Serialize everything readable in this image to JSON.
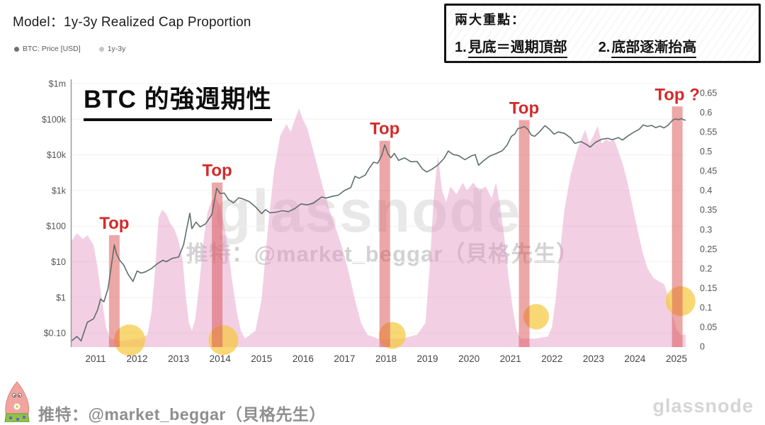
{
  "header": {
    "title": "Model：1y-3y Realized Cap Proportion"
  },
  "legend": {
    "items": [
      {
        "label": "BTC: Price [USD]",
        "dot_color": "#6f6f6f"
      },
      {
        "label": "1y-3y",
        "dot_color": "#c6c6c6"
      }
    ]
  },
  "note_box": {
    "heading": "兩大重點：",
    "points": [
      {
        "num": "1.",
        "text": "見底＝週期頂部"
      },
      {
        "num": "2.",
        "text": "底部逐漸抬高"
      }
    ]
  },
  "headline": {
    "text": "BTC 的強週期性"
  },
  "watermarks": {
    "center_logo": "glassnode",
    "center_twitter": "推特：@market_beggar（貝格先生）",
    "bottom_right_logo": "glassnode"
  },
  "footer": {
    "twitter": "推特：@market_beggar（貝格先生）"
  },
  "chart_data": {
    "type": "area+line",
    "title": "Model：1y-3y Realized Cap Proportion",
    "x_axis": {
      "years": [
        2011,
        2012,
        2013,
        2014,
        2015,
        2016,
        2017,
        2018,
        2019,
        2020,
        2021,
        2022,
        2023,
        2024,
        2025
      ]
    },
    "left_axis": {
      "label": "BTC: Price [USD]",
      "scale": "log",
      "ticks": [
        {
          "label": "$1m",
          "value": 1000000
        },
        {
          "label": "$100k",
          "value": 100000
        },
        {
          "label": "$10k",
          "value": 10000
        },
        {
          "label": "$1k",
          "value": 1000
        },
        {
          "label": "$100",
          "value": 100
        },
        {
          "label": "$10",
          "value": 10
        },
        {
          "label": "$1",
          "value": 1
        },
        {
          "label": "$0.10",
          "value": 0.1
        }
      ]
    },
    "right_axis": {
      "label": "1y-3y Realized Cap Proportion",
      "scale": "linear",
      "range": [
        0,
        0.65
      ],
      "ticks": [
        "0.65",
        "0.6",
        "0.55",
        "0.5",
        "0.45",
        "0.4",
        "0.35",
        "0.3",
        "0.25",
        "0.2",
        "0.15",
        "0.1",
        "0.05",
        "0"
      ]
    },
    "series": [
      {
        "name": "BTC: Price [USD]",
        "type": "line",
        "axis": "left",
        "color": "#5f6e6c",
        "points": [
          [
            2010.42,
            0.06
          ],
          [
            2010.55,
            0.08
          ],
          [
            2010.65,
            0.06
          ],
          [
            2010.8,
            0.2
          ],
          [
            2010.95,
            0.25
          ],
          [
            2011.05,
            0.45
          ],
          [
            2011.12,
            0.9
          ],
          [
            2011.2,
            0.75
          ],
          [
            2011.3,
            1.8
          ],
          [
            2011.38,
            8
          ],
          [
            2011.45,
            30
          ],
          [
            2011.5,
            17
          ],
          [
            2011.58,
            11
          ],
          [
            2011.68,
            8
          ],
          [
            2011.78,
            4.5
          ],
          [
            2011.9,
            2.8
          ],
          [
            2012.0,
            5.5
          ],
          [
            2012.1,
            4.8
          ],
          [
            2012.2,
            5.2
          ],
          [
            2012.35,
            6.5
          ],
          [
            2012.5,
            9
          ],
          [
            2012.62,
            11
          ],
          [
            2012.7,
            10
          ],
          [
            2012.85,
            12.5
          ],
          [
            2013.0,
            13.5
          ],
          [
            2013.12,
            30
          ],
          [
            2013.2,
            90
          ],
          [
            2013.27,
            230
          ],
          [
            2013.32,
            85
          ],
          [
            2013.42,
            130
          ],
          [
            2013.52,
            95
          ],
          [
            2013.65,
            115
          ],
          [
            2013.8,
            210
          ],
          [
            2013.92,
            1150
          ],
          [
            2014.0,
            820
          ],
          [
            2014.1,
            850
          ],
          [
            2014.2,
            560
          ],
          [
            2014.32,
            450
          ],
          [
            2014.45,
            620
          ],
          [
            2014.55,
            580
          ],
          [
            2014.7,
            490
          ],
          [
            2014.85,
            350
          ],
          [
            2015.0,
            225
          ],
          [
            2015.1,
            290
          ],
          [
            2015.2,
            235
          ],
          [
            2015.35,
            245
          ],
          [
            2015.5,
            270
          ],
          [
            2015.65,
            255
          ],
          [
            2015.8,
            310
          ],
          [
            2015.95,
            420
          ],
          [
            2016.1,
            395
          ],
          [
            2016.25,
            440
          ],
          [
            2016.45,
            660
          ],
          [
            2016.55,
            610
          ],
          [
            2016.7,
            680
          ],
          [
            2016.85,
            740
          ],
          [
            2017.0,
            1000
          ],
          [
            2017.15,
            1200
          ],
          [
            2017.25,
            2500
          ],
          [
            2017.35,
            2200
          ],
          [
            2017.5,
            2700
          ],
          [
            2017.6,
            4300
          ],
          [
            2017.7,
            6200
          ],
          [
            2017.8,
            5800
          ],
          [
            2017.9,
            9800
          ],
          [
            2017.97,
            19000
          ],
          [
            2018.05,
            10500
          ],
          [
            2018.12,
            8300
          ],
          [
            2018.2,
            11000
          ],
          [
            2018.3,
            7000
          ],
          [
            2018.45,
            8200
          ],
          [
            2018.6,
            6400
          ],
          [
            2018.75,
            6500
          ],
          [
            2018.88,
            4000
          ],
          [
            2018.98,
            3300
          ],
          [
            2019.1,
            3900
          ],
          [
            2019.25,
            5200
          ],
          [
            2019.4,
            8000
          ],
          [
            2019.5,
            12800
          ],
          [
            2019.62,
            10200
          ],
          [
            2019.75,
            9500
          ],
          [
            2019.9,
            7300
          ],
          [
            2020.05,
            9300
          ],
          [
            2020.15,
            10200
          ],
          [
            2020.23,
            5100
          ],
          [
            2020.35,
            6800
          ],
          [
            2020.5,
            9200
          ],
          [
            2020.65,
            10800
          ],
          [
            2020.8,
            13000
          ],
          [
            2020.92,
            19000
          ],
          [
            2021.02,
            33000
          ],
          [
            2021.1,
            38000
          ],
          [
            2021.18,
            55000
          ],
          [
            2021.28,
            58000
          ],
          [
            2021.33,
            63000
          ],
          [
            2021.42,
            52000
          ],
          [
            2021.5,
            36000
          ],
          [
            2021.58,
            33000
          ],
          [
            2021.7,
            44000
          ],
          [
            2021.83,
            66000
          ],
          [
            2021.95,
            51000
          ],
          [
            2022.05,
            38000
          ],
          [
            2022.15,
            44000
          ],
          [
            2022.3,
            40000
          ],
          [
            2022.45,
            30000
          ],
          [
            2022.55,
            21000
          ],
          [
            2022.7,
            23500
          ],
          [
            2022.82,
            19800
          ],
          [
            2022.92,
            16500
          ],
          [
            2023.05,
            22500
          ],
          [
            2023.2,
            27500
          ],
          [
            2023.35,
            29000
          ],
          [
            2023.45,
            26500
          ],
          [
            2023.6,
            30500
          ],
          [
            2023.7,
            26000
          ],
          [
            2023.85,
            35000
          ],
          [
            2023.97,
            43000
          ],
          [
            2024.1,
            52000
          ],
          [
            2024.2,
            69000
          ],
          [
            2024.3,
            63000
          ],
          [
            2024.4,
            67000
          ],
          [
            2024.5,
            58000
          ],
          [
            2024.6,
            64000
          ],
          [
            2024.7,
            57000
          ],
          [
            2024.8,
            68000
          ],
          [
            2024.9,
            92000
          ],
          [
            2024.97,
            102000
          ],
          [
            2025.05,
            97000
          ],
          [
            2025.12,
            104000
          ],
          [
            2025.18,
            96000
          ],
          [
            2025.22,
            93000
          ]
        ]
      },
      {
        "name": "1y-3y",
        "type": "area",
        "axis": "right",
        "color": "#e494c4",
        "opacity": 0.45,
        "points": [
          [
            2010.42,
            0.27
          ],
          [
            2010.55,
            0.29
          ],
          [
            2010.7,
            0.275
          ],
          [
            2010.8,
            0.285
          ],
          [
            2010.95,
            0.26
          ],
          [
            2011.05,
            0.2
          ],
          [
            2011.15,
            0.12
          ],
          [
            2011.25,
            0.05
          ],
          [
            2011.35,
            0.02
          ],
          [
            2011.6,
            0.013
          ],
          [
            2011.9,
            0.018
          ],
          [
            2012.1,
            0.02
          ],
          [
            2012.25,
            0.03
          ],
          [
            2012.35,
            0.09
          ],
          [
            2012.45,
            0.22
          ],
          [
            2012.52,
            0.33
          ],
          [
            2012.6,
            0.35
          ],
          [
            2012.7,
            0.34
          ],
          [
            2012.8,
            0.315
          ],
          [
            2012.9,
            0.3
          ],
          [
            2013.0,
            0.27
          ],
          [
            2013.1,
            0.22
          ],
          [
            2013.17,
            0.13
          ],
          [
            2013.25,
            0.06
          ],
          [
            2013.32,
            0.04
          ],
          [
            2013.4,
            0.07
          ],
          [
            2013.5,
            0.16
          ],
          [
            2013.6,
            0.27
          ],
          [
            2013.7,
            0.345
          ],
          [
            2013.8,
            0.375
          ],
          [
            2013.9,
            0.38
          ],
          [
            2014.0,
            0.36
          ],
          [
            2014.1,
            0.31
          ],
          [
            2014.2,
            0.245
          ],
          [
            2014.3,
            0.16
          ],
          [
            2014.4,
            0.09
          ],
          [
            2014.5,
            0.04
          ],
          [
            2014.6,
            0.02
          ],
          [
            2014.85,
            0.04
          ],
          [
            2015.0,
            0.12
          ],
          [
            2015.15,
            0.3
          ],
          [
            2015.3,
            0.45
          ],
          [
            2015.45,
            0.54
          ],
          [
            2015.6,
            0.57
          ],
          [
            2015.7,
            0.55
          ],
          [
            2015.8,
            0.58
          ],
          [
            2015.9,
            0.61
          ],
          [
            2016.0,
            0.58
          ],
          [
            2016.1,
            0.56
          ],
          [
            2016.2,
            0.52
          ],
          [
            2016.35,
            0.46
          ],
          [
            2016.5,
            0.4
          ],
          [
            2016.65,
            0.345
          ],
          [
            2016.8,
            0.3
          ],
          [
            2016.95,
            0.25
          ],
          [
            2017.1,
            0.19
          ],
          [
            2017.25,
            0.12
          ],
          [
            2017.4,
            0.06
          ],
          [
            2017.55,
            0.03
          ],
          [
            2017.8,
            0.02
          ],
          [
            2018.1,
            0.02
          ],
          [
            2018.4,
            0.02
          ],
          [
            2018.75,
            0.03
          ],
          [
            2018.95,
            0.06
          ],
          [
            2019.05,
            0.2
          ],
          [
            2019.15,
            0.38
          ],
          [
            2019.25,
            0.49
          ],
          [
            2019.35,
            0.4
          ],
          [
            2019.45,
            0.37
          ],
          [
            2019.55,
            0.41
          ],
          [
            2019.7,
            0.39
          ],
          [
            2019.85,
            0.42
          ],
          [
            2019.95,
            0.4
          ],
          [
            2020.1,
            0.42
          ],
          [
            2020.25,
            0.4
          ],
          [
            2020.4,
            0.41
          ],
          [
            2020.55,
            0.38
          ],
          [
            2020.65,
            0.42
          ],
          [
            2020.75,
            0.36
          ],
          [
            2020.85,
            0.28
          ],
          [
            2020.95,
            0.18
          ],
          [
            2021.05,
            0.1
          ],
          [
            2021.15,
            0.04
          ],
          [
            2021.25,
            0.02
          ],
          [
            2021.6,
            0.02
          ],
          [
            2021.9,
            0.025
          ],
          [
            2022.0,
            0.05
          ],
          [
            2022.1,
            0.13
          ],
          [
            2022.2,
            0.25
          ],
          [
            2022.3,
            0.35
          ],
          [
            2022.45,
            0.44
          ],
          [
            2022.6,
            0.5
          ],
          [
            2022.7,
            0.53
          ],
          [
            2022.8,
            0.555
          ],
          [
            2022.9,
            0.52
          ],
          [
            2023.0,
            0.54
          ],
          [
            2023.1,
            0.565
          ],
          [
            2023.2,
            0.52
          ],
          [
            2023.3,
            0.53
          ],
          [
            2023.4,
            0.525
          ],
          [
            2023.5,
            0.53
          ],
          [
            2023.6,
            0.5
          ],
          [
            2023.7,
            0.47
          ],
          [
            2023.8,
            0.43
          ],
          [
            2023.9,
            0.38
          ],
          [
            2024.0,
            0.33
          ],
          [
            2024.1,
            0.28
          ],
          [
            2024.2,
            0.235
          ],
          [
            2024.3,
            0.2
          ],
          [
            2024.45,
            0.175
          ],
          [
            2024.6,
            0.165
          ],
          [
            2024.7,
            0.16
          ],
          [
            2024.8,
            0.13
          ],
          [
            2024.9,
            0.085
          ],
          [
            2025.0,
            0.045
          ],
          [
            2025.1,
            0.03
          ],
          [
            2025.22,
            0.03
          ]
        ]
      }
    ],
    "markers": [
      {
        "label": "Top",
        "year": 2011.45,
        "bar_top": 0.285
      },
      {
        "label": "Top",
        "year": 2013.93,
        "bar_top": 0.42
      },
      {
        "label": "Top",
        "year": 2017.97,
        "bar_top": 0.527
      },
      {
        "label": "Top",
        "year": 2021.33,
        "bar_top": 0.58
      },
      {
        "label": "Top ?",
        "year": 2025.02,
        "bar_top": 0.615
      }
    ],
    "bottom_circles": [
      {
        "year": 2011.82,
        "value": 0.016,
        "r": 22
      },
      {
        "year": 2014.08,
        "value": 0.016,
        "r": 21
      },
      {
        "year": 2018.15,
        "value": 0.028,
        "r": 19
      },
      {
        "year": 2021.62,
        "value": 0.076,
        "r": 18
      },
      {
        "year": 2025.1,
        "value": 0.116,
        "r": 21
      }
    ],
    "colors": {
      "top_bar": "#d94f4f",
      "top_label": "#d42a2a",
      "circle": "#f5c840",
      "grid": "#f0f0f0",
      "axis_line": "#9a9a9a",
      "tick_text": "#555555",
      "year_text": "#444444"
    },
    "legend_position": "top-left",
    "grid": true
  }
}
